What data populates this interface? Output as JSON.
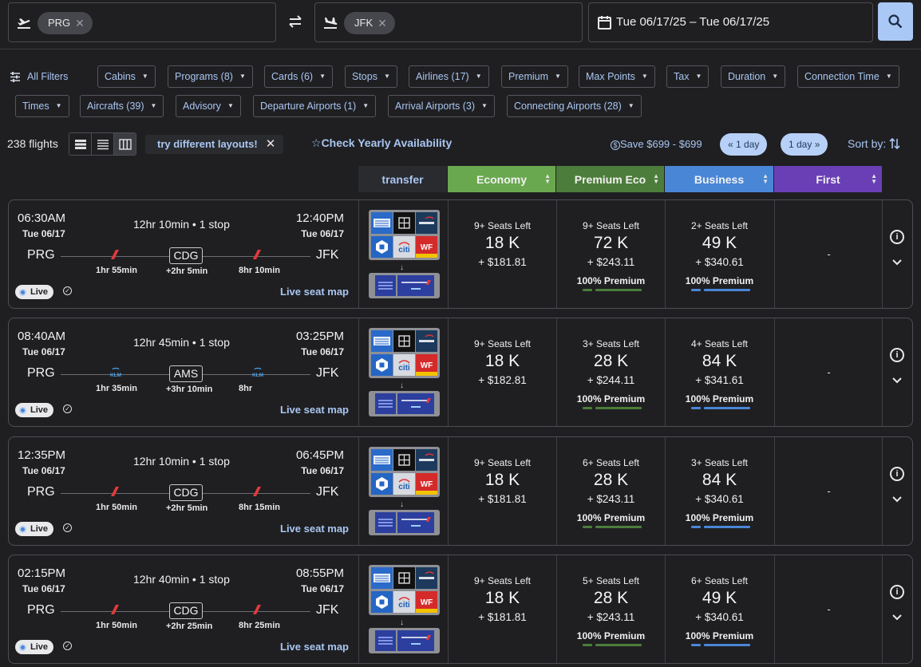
{
  "search": {
    "origin": "PRG",
    "destination": "JFK",
    "dates": "Tue 06/17/25 – Tue 06/17/25"
  },
  "filters": {
    "all_filters": "All Filters",
    "row1": [
      "Cabins",
      "Programs (8)",
      "Cards (6)",
      "Stops",
      "Airlines (17)",
      "Premium",
      "Max Points",
      "Tax",
      "Duration",
      "Connection Time"
    ],
    "row2": [
      "Times",
      "Aircrafts (39)",
      "Advisory",
      "Departure Airports (1)",
      "Arrival Airports (3)",
      "Connecting Airports (28)"
    ]
  },
  "results": {
    "count": "238 flights",
    "tip": "try different layouts!",
    "yearly": "Check Yearly Availability",
    "save": "Save $699 - $699",
    "prev_day": "1 day",
    "next_day": "1 day",
    "sort_label": "Sort by:"
  },
  "columns": {
    "transfer": "transfer",
    "economy": "Economy",
    "premium_eco": "Premium Eco",
    "business": "Business",
    "first": "First"
  },
  "colors": {
    "economy": "#6aa84f",
    "premium_eco": "#4c7d3a",
    "business": "#4a86d6",
    "first": "#6a3fb5"
  },
  "flights": [
    {
      "dep_time": "06:30AM",
      "dep_date": "Tue 06/17",
      "arr_time": "12:40PM",
      "arr_date": "Tue 06/17",
      "duration": "12hr 10min • 1 stop",
      "origin": "PRG",
      "stop": "CDG",
      "dest": "JFK",
      "seg1": "1hr 55min",
      "layover": "+2hr 5min",
      "seg2": "8hr 10min",
      "airline": "air-france",
      "live": "Live",
      "seatmap": "Live seat map",
      "economy": {
        "seats": "9+ Seats Left",
        "points": "18 K",
        "tax": "+ $181.81",
        "premium": ""
      },
      "premium_eco": {
        "seats": "9+ Seats Left",
        "points": "72 K",
        "tax": "+ $243.11",
        "premium": "100% Premium"
      },
      "business": {
        "seats": "2+ Seats Left",
        "points": "49 K",
        "tax": "+ $340.61",
        "premium": "100% Premium"
      },
      "first": "-"
    },
    {
      "dep_time": "08:40AM",
      "dep_date": "Tue 06/17",
      "arr_time": "03:25PM",
      "arr_date": "Tue 06/17",
      "duration": "12hr 45min • 1 stop",
      "origin": "PRG",
      "stop": "AMS",
      "dest": "JFK",
      "seg1": "1hr 35min",
      "layover": "+3hr 10min",
      "seg2": "8hr",
      "airline": "klm",
      "live": "Live",
      "seatmap": "Live seat map",
      "economy": {
        "seats": "9+ Seats Left",
        "points": "18 K",
        "tax": "+ $182.81",
        "premium": ""
      },
      "premium_eco": {
        "seats": "3+ Seats Left",
        "points": "28 K",
        "tax": "+ $244.11",
        "premium": "100% Premium"
      },
      "business": {
        "seats": "4+ Seats Left",
        "points": "84 K",
        "tax": "+ $341.61",
        "premium": "100% Premium"
      },
      "first": "-"
    },
    {
      "dep_time": "12:35PM",
      "dep_date": "Tue 06/17",
      "arr_time": "06:45PM",
      "arr_date": "Tue 06/17",
      "duration": "12hr 10min • 1 stop",
      "origin": "PRG",
      "stop": "CDG",
      "dest": "JFK",
      "seg1": "1hr 50min",
      "layover": "+2hr 5min",
      "seg2": "8hr 15min",
      "airline": "air-france",
      "live": "Live",
      "seatmap": "Live seat map",
      "economy": {
        "seats": "9+ Seats Left",
        "points": "18 K",
        "tax": "+ $181.81",
        "premium": ""
      },
      "premium_eco": {
        "seats": "6+ Seats Left",
        "points": "28 K",
        "tax": "+ $243.11",
        "premium": "100% Premium"
      },
      "business": {
        "seats": "3+ Seats Left",
        "points": "84 K",
        "tax": "+ $340.61",
        "premium": "100% Premium"
      },
      "first": "-"
    },
    {
      "dep_time": "02:15PM",
      "dep_date": "Tue 06/17",
      "arr_time": "08:55PM",
      "arr_date": "Tue 06/17",
      "duration": "12hr 40min • 1 stop",
      "origin": "PRG",
      "stop": "CDG",
      "dest": "JFK",
      "seg1": "1hr 50min",
      "layover": "+2hr 25min",
      "seg2": "8hr 25min",
      "airline": "air-france",
      "live": "Live",
      "seatmap": "Live seat map",
      "economy": {
        "seats": "9+ Seats Left",
        "points": "18 K",
        "tax": "+ $181.81",
        "premium": ""
      },
      "premium_eco": {
        "seats": "5+ Seats Left",
        "points": "28 K",
        "tax": "+ $243.11",
        "premium": "100% Premium"
      },
      "business": {
        "seats": "6+ Seats Left",
        "points": "49 K",
        "tax": "+ $340.61",
        "premium": "100% Premium"
      },
      "first": "-"
    }
  ]
}
